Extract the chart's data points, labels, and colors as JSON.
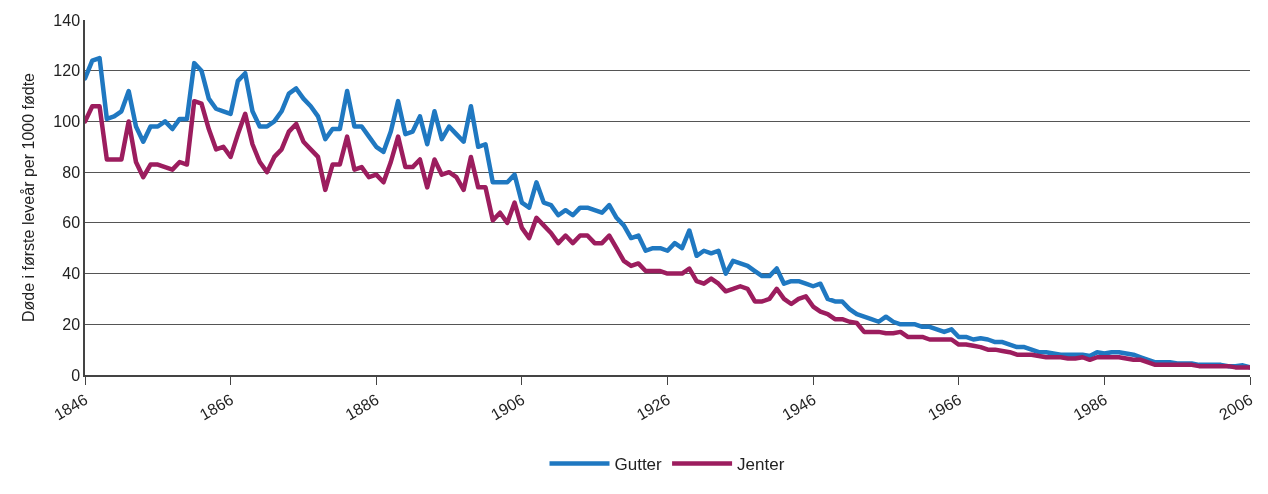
{
  "chart_data": {
    "type": "line",
    "ylabel": "Døde i første leveår per 1000 fødte",
    "x": [
      1846,
      1847,
      1848,
      1849,
      1850,
      1851,
      1852,
      1853,
      1854,
      1855,
      1856,
      1857,
      1858,
      1859,
      1860,
      1861,
      1862,
      1863,
      1864,
      1865,
      1866,
      1867,
      1868,
      1869,
      1870,
      1871,
      1872,
      1873,
      1874,
      1875,
      1876,
      1877,
      1878,
      1879,
      1880,
      1881,
      1882,
      1883,
      1884,
      1885,
      1886,
      1887,
      1888,
      1889,
      1890,
      1891,
      1892,
      1893,
      1894,
      1895,
      1896,
      1897,
      1898,
      1899,
      1900,
      1901,
      1902,
      1903,
      1904,
      1905,
      1906,
      1907,
      1908,
      1909,
      1910,
      1911,
      1912,
      1913,
      1914,
      1915,
      1916,
      1917,
      1918,
      1919,
      1920,
      1921,
      1922,
      1923,
      1924,
      1925,
      1926,
      1927,
      1928,
      1929,
      1930,
      1931,
      1932,
      1933,
      1934,
      1935,
      1936,
      1937,
      1938,
      1939,
      1940,
      1941,
      1942,
      1943,
      1944,
      1945,
      1946,
      1947,
      1948,
      1949,
      1950,
      1951,
      1952,
      1953,
      1954,
      1955,
      1956,
      1957,
      1958,
      1959,
      1960,
      1961,
      1962,
      1963,
      1964,
      1965,
      1966,
      1967,
      1968,
      1969,
      1970,
      1971,
      1972,
      1973,
      1974,
      1975,
      1976,
      1977,
      1978,
      1979,
      1980,
      1981,
      1982,
      1983,
      1984,
      1985,
      1986,
      1987,
      1988,
      1989,
      1990,
      1991,
      1992,
      1993,
      1994,
      1995,
      1996,
      1997,
      1998,
      1999,
      2000,
      2001,
      2002,
      2003,
      2004,
      2005,
      2006
    ],
    "series": [
      {
        "name": "Gutter",
        "color": "#1f78c1",
        "values": [
          117,
          124,
          125,
          101,
          102,
          104,
          112,
          98,
          92,
          98,
          98,
          100,
          97,
          101,
          101,
          123,
          120,
          109,
          105,
          104,
          103,
          116,
          119,
          104,
          98,
          98,
          100,
          104,
          111,
          113,
          109,
          106,
          102,
          93,
          97,
          97,
          112,
          98,
          98,
          94,
          90,
          88,
          96,
          108,
          95,
          96,
          102,
          91,
          104,
          93,
          98,
          95,
          92,
          106,
          90,
          91,
          76,
          76,
          76,
          79,
          68,
          66,
          76,
          68,
          67,
          63,
          65,
          63,
          66,
          66,
          65,
          64,
          67,
          62,
          59,
          54,
          55,
          49,
          50,
          50,
          49,
          52,
          50,
          57,
          47,
          49,
          48,
          49,
          40,
          45,
          44,
          43,
          41,
          39,
          39,
          42,
          36,
          37,
          37,
          36,
          35,
          36,
          30,
          29,
          29,
          26,
          24,
          23,
          22,
          21,
          23,
          21,
          20,
          20,
          20,
          19,
          19,
          18,
          17,
          18,
          15,
          15,
          14,
          14.5,
          14,
          13,
          13,
          12,
          11,
          11,
          10,
          9,
          9,
          8.5,
          8,
          8,
          8,
          8,
          7.5,
          9,
          8.5,
          9,
          9,
          8.5,
          8,
          7,
          6,
          5,
          5,
          5,
          4.5,
          4.5,
          4.5,
          4,
          4,
          4,
          4,
          3.5,
          3.5,
          3.8,
          3
        ]
      },
      {
        "name": "Jenter",
        "color": "#9c1d5e",
        "values": [
          100,
          106,
          106,
          85,
          85,
          85,
          100,
          84,
          78,
          83,
          83,
          82,
          81,
          84,
          83,
          108,
          107,
          97,
          89,
          90,
          86,
          95,
          103,
          91,
          84,
          80,
          86,
          89,
          96,
          99,
          92,
          89,
          86,
          73,
          83,
          83,
          94,
          81,
          82,
          78,
          79,
          76,
          84,
          94,
          82,
          82,
          85,
          74,
          85,
          79,
          80,
          78,
          73,
          86,
          74,
          74,
          61,
          64,
          60,
          68,
          58,
          54,
          62,
          59,
          56,
          52,
          55,
          52,
          55,
          55,
          52,
          52,
          55,
          50,
          45,
          43,
          44,
          41,
          41,
          41,
          40,
          40,
          40,
          42,
          37,
          36,
          38,
          36,
          33,
          34,
          35,
          34,
          29,
          29,
          30,
          34,
          30,
          28,
          30,
          31,
          27,
          25,
          24,
          22,
          22,
          21,
          20.5,
          17,
          17,
          17,
          16.5,
          16.5,
          17,
          15,
          15,
          15,
          14,
          14,
          14,
          14,
          12,
          12,
          11.5,
          11,
          10,
          10,
          9.5,
          9,
          8,
          8,
          8,
          7.5,
          7,
          7,
          7,
          6.5,
          6.5,
          7,
          6,
          7,
          7,
          7,
          7,
          6.5,
          6,
          6,
          5,
          4,
          4,
          4,
          4,
          4,
          4,
          3.5,
          3.5,
          3.5,
          3.5,
          3.5,
          3,
          3,
          3
        ]
      }
    ],
    "xlim": [
      1846,
      2006
    ],
    "xticks": [
      1846,
      1866,
      1886,
      1906,
      1926,
      1946,
      1966,
      1986,
      2006
    ],
    "ylim": [
      0,
      140
    ],
    "yticks": [
      0,
      20,
      40,
      60,
      80,
      100,
      120,
      140
    ],
    "grid": "y",
    "legend": "bottom",
    "marker": "none",
    "line_style": "solid"
  }
}
